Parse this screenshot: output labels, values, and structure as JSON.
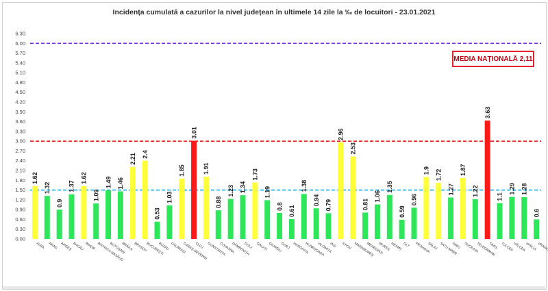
{
  "chart_data": {
    "type": "bar",
    "title": "Incidența cumulată a cazurilor la nivel județean în ultimele 14 zile la ‰ de locuitori - 23.01.2021",
    "xlabel": "",
    "ylabel": "",
    "ylim": [
      0,
      6.3
    ],
    "yticks": [
      "0.00",
      "0.30",
      "0.60",
      "0.90",
      "1.20",
      "1.50",
      "1.80",
      "2.10",
      "2.40",
      "2.70",
      "3.00",
      "3.30",
      "3.60",
      "3.90",
      "4.20",
      "4.50",
      "4.80",
      "5.10",
      "5.40",
      "5.70",
      "6.00",
      "6.30"
    ],
    "categories": [
      "ALBA",
      "ARAD",
      "ARGEȘ",
      "BACĂU",
      "BIHOR",
      "BISTRIȚA NĂSĂUD",
      "BOTOȘANI",
      "BRĂILA",
      "BRAȘOV",
      "BUCUREȘTI",
      "BUZĂU",
      "CĂLĂRAȘI",
      "CARAȘ-SEVERIN",
      "CLUJ",
      "CONSTANȚA",
      "COVASNA",
      "DÂMBOVIȚA",
      "DOLJ",
      "GALAȚI",
      "GIURGIU",
      "GORJ",
      "HARGHITA",
      "HUNEDOARA",
      "IALOMIȚA",
      "IAȘI",
      "ILFOV",
      "MARAMUREȘ",
      "MEHEDINȚI",
      "MUREȘ",
      "NEAMȚ",
      "OLT",
      "PRAHOVA",
      "SĂLAJ",
      "SATU MARE",
      "SIBIU",
      "SUCEAVA",
      "TELEORMAN",
      "TIMIȘ",
      "TULCEA",
      "VÂLCEA",
      "VASLUI",
      "VRANCEA"
    ],
    "values": [
      1.62,
      1.32,
      0.9,
      1.37,
      1.62,
      1.09,
      1.49,
      1.46,
      2.21,
      2.4,
      0.53,
      1.03,
      1.85,
      3.01,
      1.91,
      0.88,
      1.23,
      1.34,
      1.73,
      1.19,
      0.8,
      0.61,
      1.38,
      0.94,
      0.79,
      2.96,
      2.53,
      0.81,
      1.06,
      1.35,
      0.59,
      0.96,
      1.9,
      1.72,
      1.27,
      1.87,
      1.22,
      3.63,
      1.1,
      1.29,
      1.28,
      0.6
    ],
    "value_labels": [
      "1.62",
      "1.32",
      "0.9",
      "1.37",
      "1.62",
      "1.09",
      "1.49",
      "1.46",
      "2.21",
      "2.4",
      "0.53",
      "1.03",
      "1.85",
      "3.01",
      "1.91",
      "0.88",
      "1.23",
      "1.34",
      "1.73",
      "1.19",
      "0.8",
      "0.61",
      "1.38",
      "0.94",
      "0.79",
      "2.96",
      "2.53",
      "0.81",
      "1.06",
      "1.35",
      "0.59",
      "0.96",
      "1.9",
      "1.72",
      "1.27",
      "1.87",
      "1.22",
      "3.63",
      "1.1",
      "1.29",
      "1.28",
      "0.6"
    ],
    "colors": {
      "green": "#2ee65a",
      "yellow": "#ffff3a",
      "red": "#ff1a1a",
      "line_purple": "#7030d0",
      "line_red": "#e02020",
      "line_blue": "#1aa8e6"
    },
    "reference_lines": [
      {
        "value": 6.0,
        "color": "purple"
      },
      {
        "value": 3.0,
        "color": "red"
      },
      {
        "value": 1.5,
        "color": "blue"
      }
    ],
    "grid": false,
    "legend": "none",
    "annotations": [
      "MEDIA NAȚIONALĂ 2,11"
    ]
  }
}
